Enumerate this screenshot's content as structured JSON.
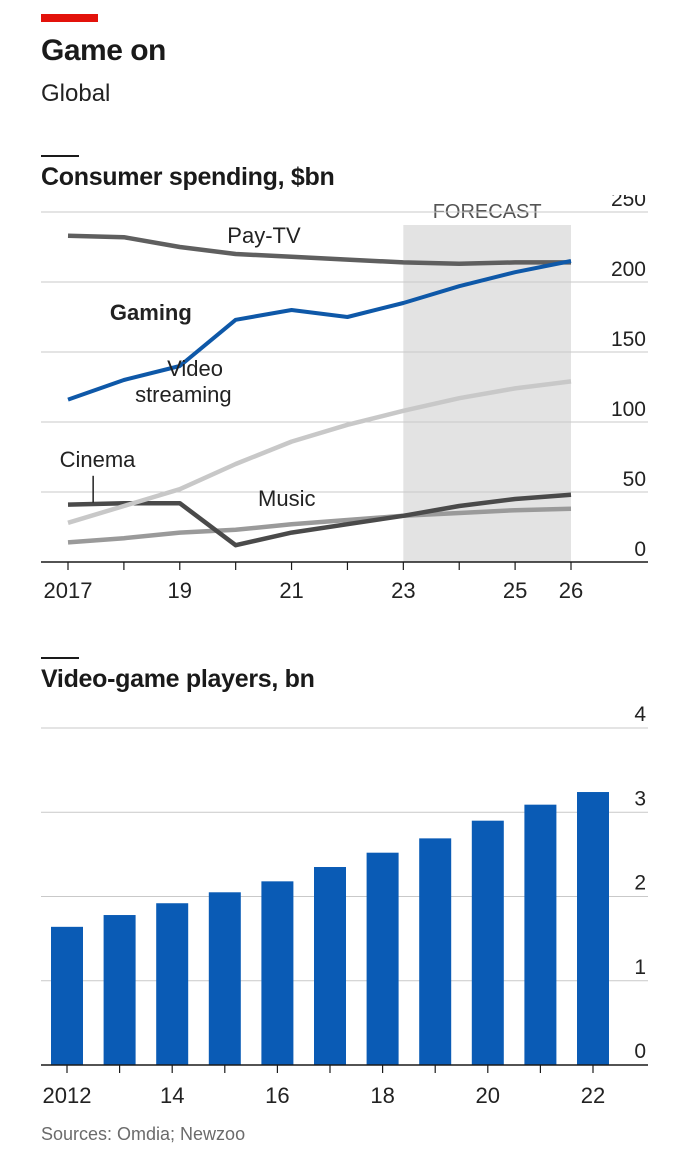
{
  "header": {
    "title": "Game on",
    "subtitle": "Global"
  },
  "footer": {
    "source": "Sources: Omdia; Newzoo"
  },
  "colors": {
    "accent_red": "#e3120b",
    "gaming_blue": "#0e58a8",
    "bar_blue": "#0a5bb5",
    "forecast_shade": "#e3e3e3"
  },
  "chart_data": [
    {
      "type": "line",
      "title": "Consumer spending, $bn",
      "forecast_label": "FORECAST",
      "forecast_range": [
        2023,
        2026
      ],
      "ylim": [
        0,
        250
      ],
      "yticks": [
        "0",
        "50",
        "100",
        "150",
        "200",
        "250"
      ],
      "x_tick_labels": [
        {
          "x": 2017,
          "label": "2017"
        },
        {
          "x": 2019,
          "label": "19"
        },
        {
          "x": 2021,
          "label": "21"
        },
        {
          "x": 2023,
          "label": "23"
        },
        {
          "x": 2025,
          "label": "25"
        },
        {
          "x": 2026,
          "label": "26"
        }
      ],
      "x": [
        2017,
        2018,
        2019,
        2020,
        2021,
        2022,
        2023,
        2024,
        2025,
        2026
      ],
      "series": [
        {
          "name": "Pay-TV",
          "color": "#5f5f5f",
          "label_x": 2019.85,
          "label_y": 228,
          "values": [
            233,
            232,
            225,
            220,
            218,
            216,
            214,
            213,
            214,
            214
          ]
        },
        {
          "name": "Gaming",
          "color": "#0e58a8",
          "label_x": 2017.75,
          "label_y": 173,
          "values": [
            116,
            130,
            140,
            173,
            180,
            175,
            185,
            197,
            207,
            215
          ]
        },
        {
          "name": "Video streaming",
          "label_lines": [
            "Video",
            "streaming"
          ],
          "color": "#c8c8c8",
          "label_x": 2018.2,
          "label_y": 133,
          "values": [
            28,
            40,
            52,
            70,
            86,
            98,
            108,
            117,
            124,
            129
          ]
        },
        {
          "name": "Cinema",
          "color": "#4a4a4a",
          "label_x": 2016.85,
          "label_y": 68,
          "values": [
            41,
            42,
            42,
            12,
            21,
            27,
            33,
            40,
            45,
            48
          ]
        },
        {
          "name": "Music",
          "color": "#9a9a9a",
          "label_x": 2020.4,
          "label_y": 40,
          "values": [
            14,
            17,
            21,
            23,
            27,
            30,
            33,
            35,
            37,
            38
          ]
        }
      ]
    },
    {
      "type": "bar",
      "title": "Video-game players, bn",
      "ylim": [
        0,
        4
      ],
      "yticks": [
        "0",
        "1",
        "2",
        "3",
        "4"
      ],
      "categories": [
        "2012",
        "2013",
        "2014",
        "2015",
        "2016",
        "2017",
        "2018",
        "2019",
        "2020",
        "2021",
        "2022"
      ],
      "x_tick_labels": [
        "2012",
        "",
        "14",
        "",
        "16",
        "",
        "18",
        "",
        "20",
        "",
        "22"
      ],
      "values": [
        1.64,
        1.78,
        1.92,
        2.05,
        2.18,
        2.35,
        2.52,
        2.69,
        2.9,
        3.09,
        3.24
      ]
    }
  ]
}
